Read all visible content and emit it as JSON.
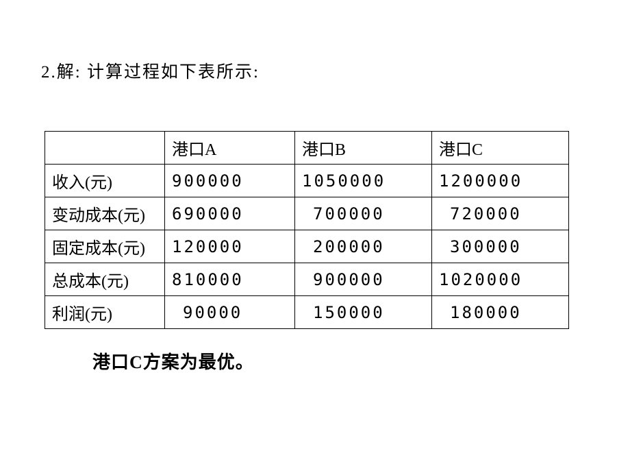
{
  "intro": "2.解: 计算过程如下表所示:",
  "table": {
    "headers": {
      "blank": "",
      "colA": "港口A",
      "colB": "港口B",
      "colC": "港口C"
    },
    "rows": [
      {
        "label": "收入(元)",
        "a": "900000",
        "b": "1050000",
        "c": "1200000",
        "a_indent": false,
        "b_indent": false,
        "c_indent": false
      },
      {
        "label": "变动成本(元)",
        "a": "690000",
        "b": "700000",
        "c": "720000",
        "a_indent": false,
        "b_indent": true,
        "c_indent": true
      },
      {
        "label": "固定成本(元)",
        "a": "120000",
        "b": "200000",
        "c": "300000",
        "a_indent": false,
        "b_indent": true,
        "c_indent": true
      },
      {
        "label": "总成本(元)",
        "a": "810000",
        "b": "900000",
        "c": "1020000",
        "a_indent": false,
        "b_indent": true,
        "c_indent": false
      },
      {
        "label": "利润(元)",
        "a": "90000",
        "b": "150000",
        "c": "180000",
        "a_indent": true,
        "b_indent": true,
        "c_indent": true
      }
    ]
  },
  "conclusion": "港口C方案为最优。"
}
